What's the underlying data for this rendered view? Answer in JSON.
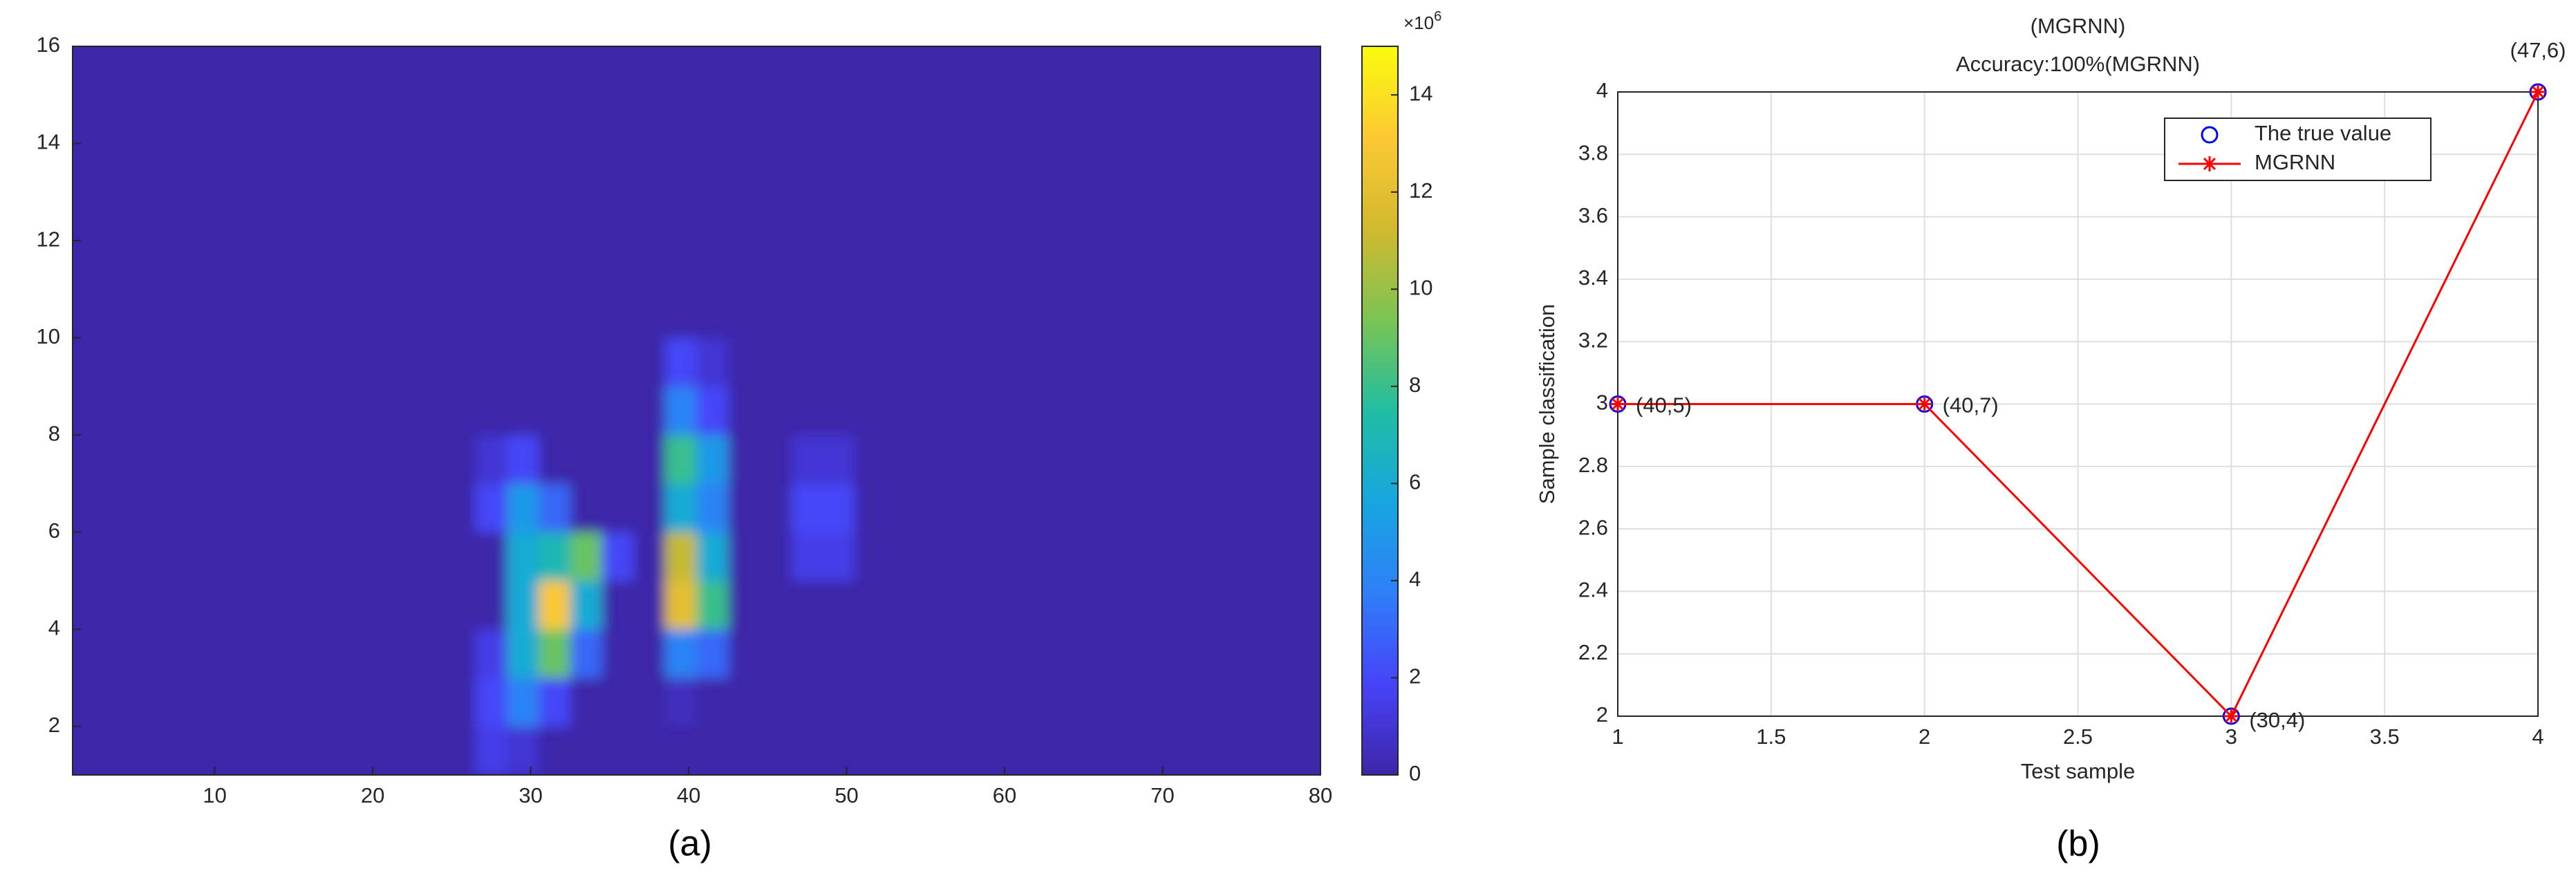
{
  "chart_data": [
    {
      "type": "heatmap",
      "caption": "(a)",
      "x_edges": [
        1,
        24.5,
        26.5,
        28.5,
        30.5,
        32.5,
        34.5,
        36.5,
        38.5,
        40.5,
        42.5,
        44.5,
        46.5,
        48.5,
        50.5,
        52.5,
        80
      ],
      "y_edges": [
        1,
        2,
        3,
        4,
        5,
        6,
        7,
        8,
        9,
        10,
        11,
        12,
        13,
        14,
        15,
        16
      ],
      "values": [
        [
          0,
          0,
          1.5,
          1,
          0,
          0,
          0,
          0,
          0,
          0,
          0,
          0,
          0,
          0,
          0,
          0
        ],
        [
          0,
          0,
          2,
          4,
          2,
          0,
          0,
          0,
          0.5,
          0,
          0,
          0,
          0,
          0,
          0,
          0
        ],
        [
          0,
          0,
          1.5,
          6,
          9,
          3,
          0,
          0,
          4,
          3,
          0,
          0,
          0,
          0,
          0,
          0
        ],
        [
          0,
          0,
          0,
          6,
          13,
          6,
          0,
          0,
          12,
          8,
          0,
          0,
          0,
          0,
          0,
          0
        ],
        [
          0,
          0,
          0,
          6,
          7,
          9,
          2,
          0,
          11,
          6,
          0,
          0,
          1.5,
          1.5,
          0,
          0
        ],
        [
          0,
          0,
          2,
          5,
          3,
          0,
          0,
          0,
          6,
          4,
          0,
          0,
          2,
          2,
          0,
          0
        ],
        [
          0,
          0,
          1,
          2,
          0,
          0,
          0,
          0,
          8,
          5,
          0,
          0,
          1,
          1,
          0,
          0
        ],
        [
          0,
          0,
          0,
          0,
          0,
          0,
          0,
          0,
          4,
          2,
          0,
          0,
          0,
          0,
          0,
          0
        ],
        [
          0,
          0,
          0,
          0,
          0,
          0,
          0,
          0,
          2,
          1,
          0,
          0,
          0,
          0,
          0,
          0
        ],
        [
          0,
          0,
          0,
          0,
          0,
          0,
          0,
          0,
          0,
          0,
          0,
          0,
          0,
          0,
          0,
          0
        ],
        [
          0,
          0,
          0,
          0,
          0,
          0,
          0,
          0,
          0,
          0,
          0,
          0,
          0,
          0,
          0,
          0
        ],
        [
          0,
          0,
          0,
          0,
          0,
          0,
          0,
          0,
          0,
          0,
          0,
          0,
          0,
          0,
          0,
          0
        ],
        [
          0,
          0,
          0,
          0,
          0,
          0,
          0,
          0,
          0,
          0,
          0,
          0,
          0,
          0,
          0,
          0
        ],
        [
          0,
          0,
          0,
          0,
          0,
          0,
          0,
          0,
          0,
          0,
          0,
          0,
          0,
          0,
          0,
          0
        ],
        [
          0,
          0,
          0,
          0,
          0,
          0,
          0,
          0,
          0,
          0,
          0,
          0,
          0,
          0,
          0,
          0
        ]
      ],
      "xlim": [
        1,
        80
      ],
      "xticks": [
        10,
        20,
        30,
        40,
        50,
        60,
        70,
        80
      ],
      "ylim": [
        1,
        16
      ],
      "yticks": [
        2,
        4,
        6,
        8,
        10,
        12,
        14,
        16
      ],
      "clim": [
        0,
        15
      ],
      "cticks": [
        0,
        2,
        4,
        6,
        8,
        10,
        12,
        14
      ],
      "colorbar_multiplier": {
        "base": "×10",
        "exponent": "6"
      },
      "colormap": [
        "#3e26a8",
        "#4743f8",
        "#2f7ff8",
        "#17a6e0",
        "#21bda2",
        "#7bc454",
        "#d2b92e",
        "#fcc934",
        "#f9fb0e"
      ]
    },
    {
      "type": "line",
      "caption": "(b)",
      "title": "(MGRNN)",
      "subtitle": "Accuracy:100%(MGRNN)",
      "x_label": "Test sample",
      "y_label": "Sample classification",
      "x": [
        1,
        2,
        3,
        4
      ],
      "series": [
        {
          "name": "The true value",
          "color": "#0000ff",
          "marker": "o",
          "line": false,
          "values": [
            3,
            3,
            2,
            4
          ]
        },
        {
          "name": "MGRNN",
          "color": "#ff0000",
          "marker": "*",
          "line": true,
          "values": [
            3,
            3,
            2,
            4
          ]
        }
      ],
      "point_labels": [
        "(40,5)",
        "(40,7)",
        "(30,4)",
        "(47,6)"
      ],
      "xlim": [
        1,
        4
      ],
      "xticks": [
        1,
        1.5,
        2,
        2.5,
        3,
        3.5,
        4
      ],
      "ylim": [
        2,
        4
      ],
      "yticks": [
        2,
        2.2,
        2.4,
        2.6,
        2.8,
        3,
        3.2,
        3.4,
        3.6,
        3.8,
        4
      ],
      "grid": true,
      "legend": "northeast"
    }
  ]
}
